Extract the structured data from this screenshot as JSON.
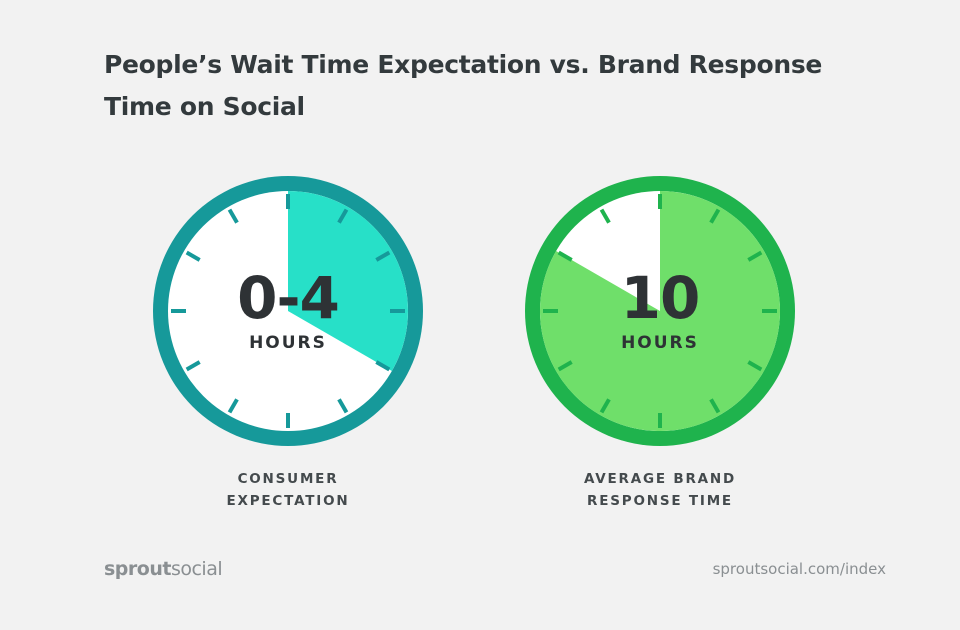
{
  "title": "People’s Wait Time Expectation vs. Brand Response Time on Social",
  "clocks": [
    {
      "value": "0-4",
      "unit": "HOURS",
      "caption_line1": "CONSUMER",
      "caption_line2": "EXPECTATION",
      "filled_hours": 4,
      "ring_color": "#16999a",
      "tick_color": "#16999a",
      "face_color": "#ffffff",
      "fill_color": "#27e0c8"
    },
    {
      "value": "10",
      "unit": "HOURS",
      "caption_line1": "AVERAGE BRAND",
      "caption_line2": "RESPONSE TIME",
      "filled_hours": 10,
      "ring_color": "#1fb34d",
      "tick_color": "#1fb34d",
      "face_color": "#ffffff",
      "fill_color": "#6fdf6a"
    }
  ],
  "footer": {
    "logo_part1": "sprout",
    "logo_part2": "social",
    "url": "sproutsocial.com/index"
  }
}
